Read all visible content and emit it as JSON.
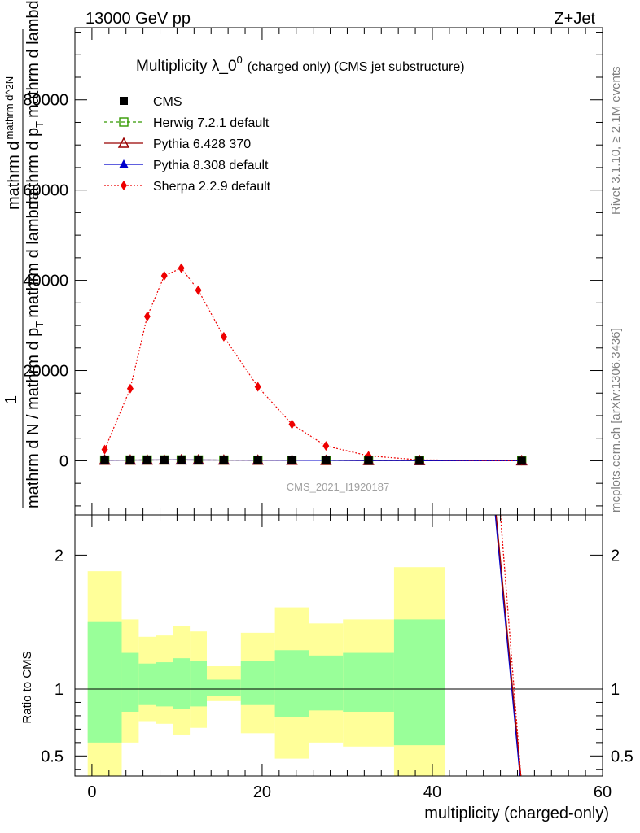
{
  "header": {
    "energy_label": "13000 GeV pp",
    "process_label": "Z+Jet"
  },
  "side_labels": {
    "rivet": "Rivet 3.1.10, ≥ 2.1M events",
    "mcplots": "mcplots.cern.ch [arXiv:1306.3436]"
  },
  "chart_data": [
    {
      "type": "line",
      "title_main": "Multiplicity λ_0",
      "title_sup": "0",
      "title_rest": "(charged only) (CMS jet substructure)",
      "analysis_tag": "CMS_2021_I1920187",
      "ylabel_parts": [
        "1",
        "mathrm d N / mathrm d p",
        "T",
        "mathrm d^2N",
        "mathrm d p",
        "T",
        "mathrm d lambda",
        "mathrm d^2N mathrm d lambda"
      ],
      "ylabel_lines": {
        "top_a": "mathrm d",
        "top_b": "N",
        "mid": "mathrm d p",
        "mid_sub": "T",
        "mid_c": "mathrm d lambda",
        "mid_d": "mathrm d",
        "one": "1",
        "bottom": "mathrm d N / mathrm d p",
        "bottom_sub": "T",
        "bottom_c": "mathrm d",
        "tail": "lambda"
      },
      "xlim": [
        -2,
        60
      ],
      "ylim": [
        -12000,
        96000
      ],
      "yticks": [
        0,
        20000,
        40000,
        60000,
        80000
      ],
      "ytick_labels": [
        "0",
        "20000",
        "40000",
        "60000",
        "80000"
      ],
      "x": [
        1.5,
        4.5,
        6.5,
        8.5,
        10.5,
        12.5,
        15.5,
        19.5,
        23.5,
        27.5,
        32.5,
        38.5,
        50.5
      ],
      "series": [
        {
          "name": "CMS",
          "color": "#000000",
          "marker": "square-filled",
          "values": [
            150,
            160,
            170,
            180,
            190,
            175,
            160,
            140,
            120,
            90,
            60,
            40,
            10
          ]
        },
        {
          "name": "Herwig 7.2.1 default",
          "color": "#339900",
          "marker": "square-open",
          "values": [
            150,
            160,
            170,
            180,
            190,
            175,
            160,
            140,
            120,
            90,
            60,
            40,
            10
          ]
        },
        {
          "name": "Pythia 6.428 370",
          "color": "#990000",
          "marker": "triangle-open",
          "values": [
            150,
            160,
            170,
            180,
            190,
            175,
            160,
            140,
            120,
            90,
            60,
            40,
            10
          ]
        },
        {
          "name": "Pythia 8.308 default",
          "color": "#0000cc",
          "marker": "triangle-filled",
          "values": [
            150,
            160,
            170,
            180,
            190,
            175,
            160,
            140,
            120,
            90,
            60,
            40,
            10
          ]
        },
        {
          "name": "Sherpa 2.2.9 default",
          "color": "#ee0000",
          "marker": "diamond-filled",
          "values": [
            2500,
            16000,
            32000,
            41000,
            42700,
            37800,
            27500,
            16400,
            8100,
            3300,
            1100,
            200,
            10
          ]
        }
      ]
    },
    {
      "type": "area",
      "ylabel": "Ratio to CMS",
      "xlabel": "multiplicity (charged-only)",
      "xlim": [
        -2,
        60
      ],
      "ylim": [
        0.35,
        2.3
      ],
      "xticks": [
        0,
        20,
        40,
        60
      ],
      "xtick_labels": [
        "0",
        "20",
        "40",
        "60"
      ],
      "yticks": [
        0.5,
        1,
        2
      ],
      "ytick_labels": [
        "0.5",
        "1",
        "2"
      ],
      "bins": [
        {
          "lo": -0.5,
          "hi": 3.5,
          "stat": [
            0.6,
            1.5
          ],
          "total": [
            0.35,
            1.88
          ]
        },
        {
          "lo": 3.5,
          "hi": 5.5,
          "stat": [
            0.83,
            1.27
          ],
          "total": [
            0.6,
            1.52
          ]
        },
        {
          "lo": 5.5,
          "hi": 7.5,
          "stat": [
            0.88,
            1.19
          ],
          "total": [
            0.76,
            1.39
          ]
        },
        {
          "lo": 7.5,
          "hi": 9.5,
          "stat": [
            0.87,
            1.2
          ],
          "total": [
            0.74,
            1.4
          ]
        },
        {
          "lo": 9.5,
          "hi": 11.5,
          "stat": [
            0.85,
            1.23
          ],
          "total": [
            0.66,
            1.47
          ]
        },
        {
          "lo": 11.5,
          "hi": 13.5,
          "stat": [
            0.87,
            1.21
          ],
          "total": [
            0.71,
            1.43
          ]
        },
        {
          "lo": 13.5,
          "hi": 17.5,
          "stat": [
            0.95,
            1.07
          ],
          "total": [
            0.91,
            1.17
          ]
        },
        {
          "lo": 17.5,
          "hi": 21.5,
          "stat": [
            0.88,
            1.21
          ],
          "total": [
            0.67,
            1.42
          ]
        },
        {
          "lo": 21.5,
          "hi": 25.5,
          "stat": [
            0.79,
            1.29
          ],
          "total": [
            0.48,
            1.61
          ]
        },
        {
          "lo": 25.5,
          "hi": 29.5,
          "stat": [
            0.84,
            1.25
          ],
          "total": [
            0.6,
            1.49
          ]
        },
        {
          "lo": 29.5,
          "hi": 35.5,
          "stat": [
            0.83,
            1.27
          ],
          "total": [
            0.57,
            1.52
          ]
        },
        {
          "lo": 35.5,
          "hi": 41.5,
          "stat": [
            0.58,
            1.52
          ],
          "total": [
            0.35,
            1.91
          ]
        }
      ],
      "mc_ratio_lines": [
        {
          "name": "Pythia 8.308 default",
          "color": "#0000cc",
          "dash": "",
          "points": [
            [
              47.4,
              2.3
            ],
            [
              50.3,
              0.35
            ]
          ]
        },
        {
          "name": "Pythia 6.428 370",
          "color": "#990000",
          "dash": "",
          "points": [
            [
              47.5,
              2.3
            ],
            [
              50.4,
              0.35
            ]
          ]
        },
        {
          "name": "Sherpa 2.2.9 default",
          "color": "#ee0000",
          "dash": "2,2",
          "points": [
            [
              48.0,
              2.3
            ],
            [
              50.4,
              0.35
            ]
          ]
        }
      ],
      "reference_line": 1,
      "stat_color": "#99ff99",
      "total_color": "#ffff99"
    }
  ]
}
